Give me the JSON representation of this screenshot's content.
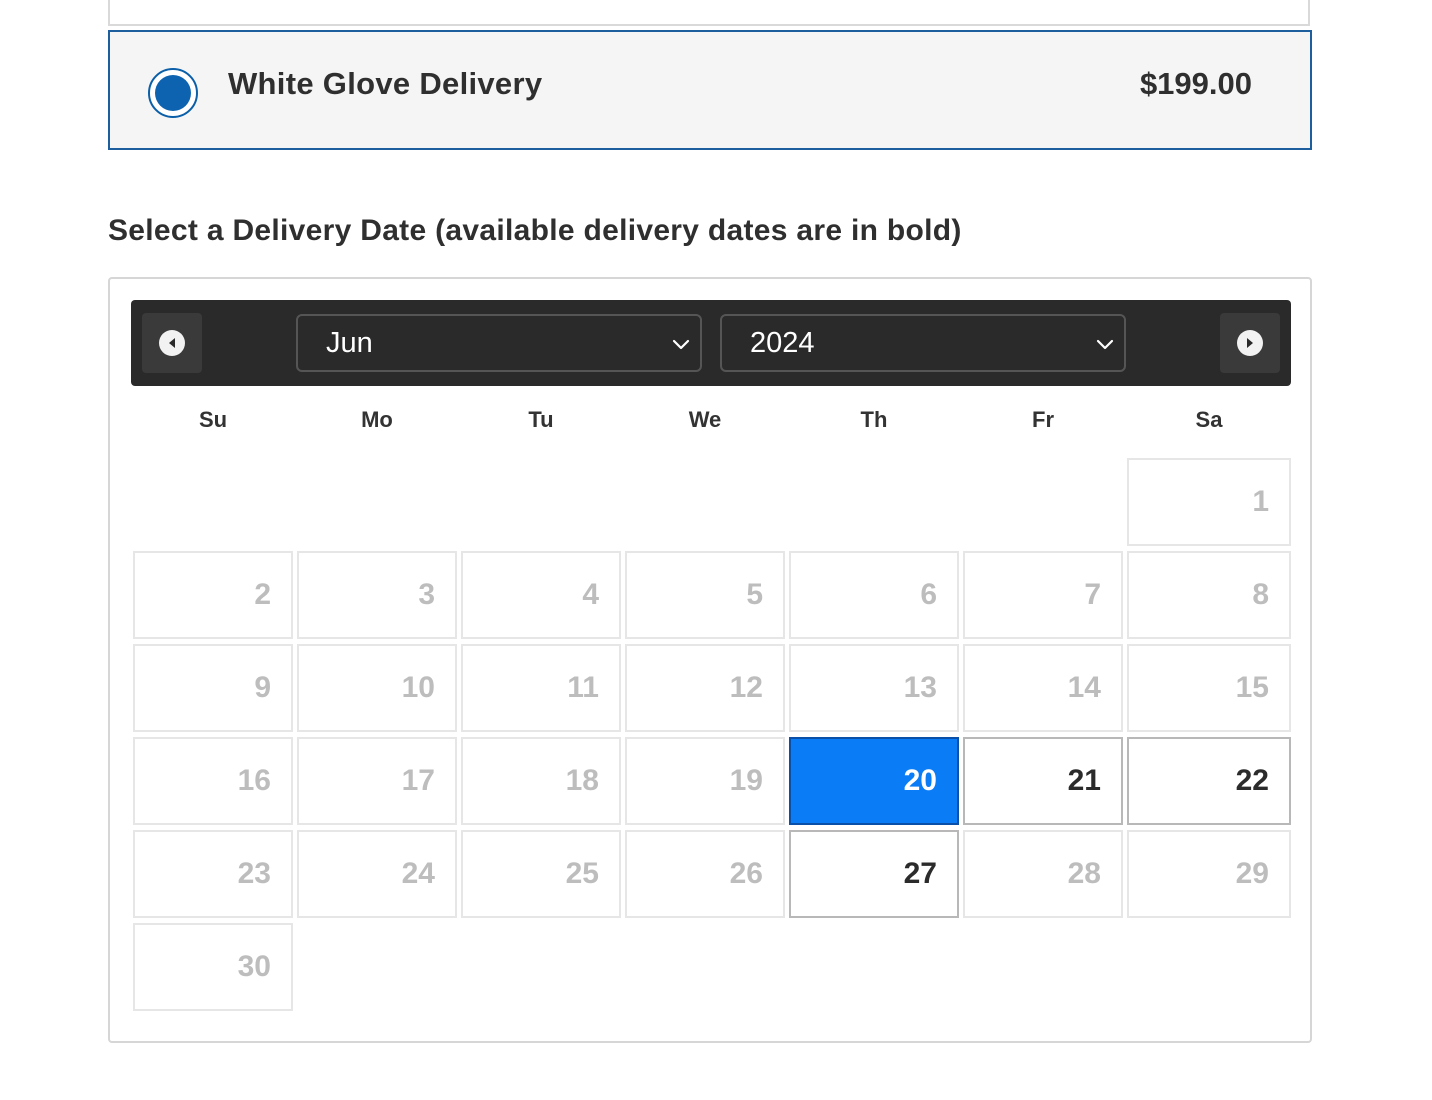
{
  "delivery_option": {
    "label": "White Glove Delivery",
    "price": "$199.00",
    "selected": true
  },
  "section_title": "Select a Delivery Date (available delivery dates are in bold)",
  "datepicker": {
    "month": "Jun",
    "year": "2024",
    "weekdays": [
      "Su",
      "Mo",
      "Tu",
      "We",
      "Th",
      "Fr",
      "Sa"
    ],
    "days": [
      "1",
      "2",
      "3",
      "4",
      "5",
      "6",
      "7",
      "8",
      "9",
      "10",
      "11",
      "12",
      "13",
      "14",
      "15",
      "16",
      "17",
      "18",
      "19",
      "20",
      "21",
      "22",
      "23",
      "24",
      "25",
      "26",
      "27",
      "28",
      "29",
      "30"
    ],
    "available_days": [
      "20",
      "21",
      "22",
      "27"
    ],
    "selected_day": "20",
    "colors": {
      "header_bg": "#2a2a2a",
      "selected_bg": "#0a7cf5",
      "unavailable_text": "#bdbdbd",
      "available_text": "#2b2b2b"
    }
  }
}
